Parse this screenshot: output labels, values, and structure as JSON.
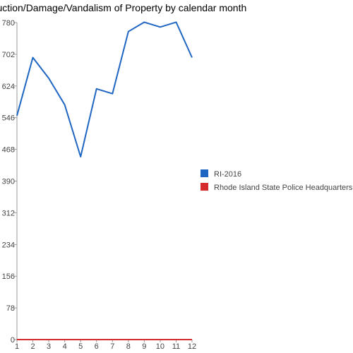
{
  "chart_data": {
    "type": "line",
    "title": "Destruction/Damage/Vandalism of Property by calendar month",
    "xlabel": "",
    "ylabel": "",
    "x": [
      1,
      2,
      3,
      4,
      5,
      6,
      7,
      8,
      9,
      10,
      11,
      12
    ],
    "ylim": [
      0,
      780
    ],
    "yticks": [
      0,
      78,
      156,
      234,
      312,
      390,
      468,
      546,
      624,
      702,
      780
    ],
    "grid": false,
    "legend_position": "right",
    "series": [
      {
        "name": "RI-2016",
        "color": "#1f66c2",
        "values": [
          551,
          694,
          643,
          578,
          450,
          617,
          605,
          758,
          781,
          769,
          781,
          694
        ]
      },
      {
        "name": "Rhode Island State Police Headquarters",
        "color": "#d52b2b",
        "values": [
          0,
          0,
          0,
          0,
          0,
          0,
          0,
          0,
          0,
          0,
          0,
          0
        ]
      }
    ]
  }
}
